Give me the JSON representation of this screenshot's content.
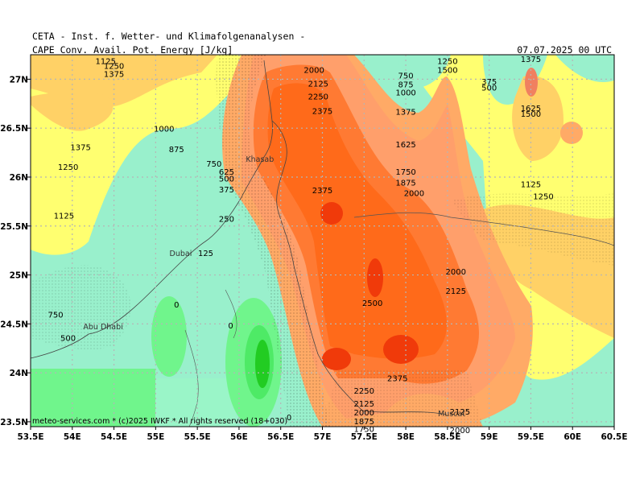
{
  "header": {
    "line1": "CETA - Inst. f. Wetter- und Klimafolgenanalysen -",
    "field": "CAPE  Conv. Avail. Pot. Energy [J/kg]",
    "datetime": "07.07.2025  00 UTC"
  },
  "footer": "meteo-services.com * (c)2025 IWKF * All rights reserved (18+030)",
  "axes": {
    "lon_labels": [
      "53.5E",
      "54E",
      "54.5E",
      "55E",
      "55.5E",
      "56E",
      "56.5E",
      "57E",
      "57.5E",
      "58E",
      "58.5E",
      "59E",
      "59.5E",
      "60E",
      "60.5E"
    ],
    "lat_labels": [
      "27N",
      "26.5N",
      "26N",
      "25.5N",
      "25N",
      "24.5N",
      "24N",
      "23.5N"
    ]
  },
  "cities": [
    {
      "name": "Khasab",
      "lon": 56.25,
      "lat": 26.18
    },
    {
      "name": "Dubai",
      "lon": 55.3,
      "lat": 25.22
    },
    {
      "name": "Abu Dhabi",
      "lon": 54.37,
      "lat": 24.47
    },
    {
      "name": "Muscat",
      "lon": 58.55,
      "lat": 23.58
    }
  ],
  "contour_labels": [
    {
      "t": "1125",
      "lon": 54.4,
      "lat": 27.18
    },
    {
      "t": "1250",
      "lon": 54.5,
      "lat": 27.13
    },
    {
      "t": "1375",
      "lon": 54.5,
      "lat": 27.05
    },
    {
      "t": "2000",
      "lon": 56.9,
      "lat": 27.09
    },
    {
      "t": "2125",
      "lon": 56.95,
      "lat": 26.95
    },
    {
      "t": "2250",
      "lon": 56.95,
      "lat": 26.82
    },
    {
      "t": "2375",
      "lon": 57.0,
      "lat": 26.67
    },
    {
      "t": "750",
      "lon": 58.0,
      "lat": 27.03
    },
    {
      "t": "875",
      "lon": 58.0,
      "lat": 26.94
    },
    {
      "t": "1000",
      "lon": 58.0,
      "lat": 26.86
    },
    {
      "t": "1250",
      "lon": 58.5,
      "lat": 27.18
    },
    {
      "t": "1500",
      "lon": 58.5,
      "lat": 27.09
    },
    {
      "t": "375",
      "lon": 59.0,
      "lat": 26.97
    },
    {
      "t": "500",
      "lon": 59.0,
      "lat": 26.91
    },
    {
      "t": "1375",
      "lon": 59.5,
      "lat": 27.2
    },
    {
      "t": "1625",
      "lon": 59.5,
      "lat": 26.7
    },
    {
      "t": "1500",
      "lon": 59.5,
      "lat": 26.64
    },
    {
      "t": "1000",
      "lon": 55.1,
      "lat": 26.49
    },
    {
      "t": "875",
      "lon": 55.25,
      "lat": 26.28
    },
    {
      "t": "1375",
      "lon": 54.1,
      "lat": 26.3
    },
    {
      "t": "1250",
      "lon": 53.95,
      "lat": 26.1
    },
    {
      "t": "750",
      "lon": 55.7,
      "lat": 26.13
    },
    {
      "t": "625",
      "lon": 55.85,
      "lat": 26.05
    },
    {
      "t": "500",
      "lon": 55.85,
      "lat": 25.98
    },
    {
      "t": "375",
      "lon": 55.85,
      "lat": 25.87
    },
    {
      "t": "250",
      "lon": 55.85,
      "lat": 25.57
    },
    {
      "t": "1125",
      "lon": 53.9,
      "lat": 25.6
    },
    {
      "t": "125",
      "lon": 55.6,
      "lat": 25.22
    },
    {
      "t": "1375",
      "lon": 58.0,
      "lat": 26.66
    },
    {
      "t": "1625",
      "lon": 58.0,
      "lat": 26.33
    },
    {
      "t": "1750",
      "lon": 58.0,
      "lat": 26.05
    },
    {
      "t": "1875",
      "lon": 58.0,
      "lat": 25.94
    },
    {
      "t": "2000",
      "lon": 58.1,
      "lat": 25.83
    },
    {
      "t": "2375",
      "lon": 57.0,
      "lat": 25.86
    },
    {
      "t": "1125",
      "lon": 59.5,
      "lat": 25.92
    },
    {
      "t": "1250",
      "lon": 59.65,
      "lat": 25.8
    },
    {
      "t": "2000",
      "lon": 58.6,
      "lat": 25.03
    },
    {
      "t": "2125",
      "lon": 58.6,
      "lat": 24.83
    },
    {
      "t": "2500",
      "lon": 57.6,
      "lat": 24.71
    },
    {
      "t": "750",
      "lon": 53.8,
      "lat": 24.59
    },
    {
      "t": "500",
      "lon": 53.95,
      "lat": 24.35
    },
    {
      "t": "0",
      "lon": 55.25,
      "lat": 24.69
    },
    {
      "t": "0",
      "lon": 55.9,
      "lat": 24.48
    },
    {
      "t": "2375",
      "lon": 57.9,
      "lat": 23.94
    },
    {
      "t": "2250",
      "lon": 57.5,
      "lat": 23.81
    },
    {
      "t": "2125",
      "lon": 57.5,
      "lat": 23.68
    },
    {
      "t": "2000",
      "lon": 57.5,
      "lat": 23.59
    },
    {
      "t": "1875",
      "lon": 57.5,
      "lat": 23.5
    },
    {
      "t": "1750",
      "lon": 57.5,
      "lat": 23.42
    },
    {
      "t": "2125",
      "lon": 58.65,
      "lat": 23.6
    },
    {
      "t": "2000",
      "lon": 58.65,
      "lat": 23.41
    },
    {
      "t": "0",
      "lon": 56.6,
      "lat": 23.54
    }
  ],
  "colors": {
    "lt_green": "#99f0cc",
    "green_light": "#9af5c8",
    "green": "#70f58c",
    "green_mid": "#4eea66",
    "green_dark": "#22cc22",
    "yellow": "#ffff70",
    "lt_orange": "#ffd166",
    "orange_lt": "#ffaa66",
    "salmon": "#ff9f6b",
    "orange": "#ff7a33",
    "red_orange": "#ff5522",
    "dark_orange": "#ff6a1a",
    "red": "#f03a0a",
    "pink": "#f08060",
    "grid": "#bbbbbb",
    "contour": "#000000"
  }
}
